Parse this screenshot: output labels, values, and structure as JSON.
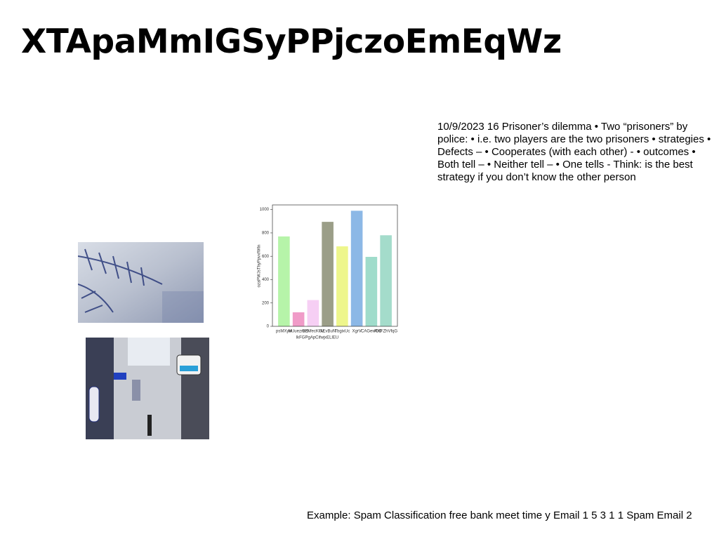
{
  "title": "XTApaMmIGSyPPjczoEmEqWz",
  "body": "10/9/2023 16 Prisoner’s dilemma • Two “prisoners” by police: • i.e. two players are the two prisoners • strategies • Defects – • Cooperates (with each other) - • outcomes • Both tell – • Neither tell – • One tells - Think: is the best strategy if you don’t know the other person",
  "footer": "Example: Spam Classification free bank meet time y Email 1 5 3 1 1 Spam Email 2",
  "chart_data": {
    "type": "bar",
    "x_label": "lkFGPgApCifwjxELlEU",
    "y_label": "ozaPWJsThyPpvxfWIn",
    "categories": [
      "psMXyw",
      "NUuezruEl",
      "BzNfecKUv",
      "NEvBuN",
      "TbgixUc",
      "XgrV",
      "CAGewOD",
      "RHFZhVfqG"
    ],
    "values": [
      770,
      120,
      225,
      895,
      685,
      990,
      595,
      780
    ],
    "colors": [
      "#b6f4a9",
      "#f09bc8",
      "#f6cff4",
      "#9b9e88",
      "#eef68b",
      "#8cb8e6",
      "#9fdccb",
      "#a4dccb"
    ],
    "ylim": [
      0,
      1040
    ],
    "yticks": [
      0,
      200,
      400,
      600,
      800,
      1000
    ]
  }
}
